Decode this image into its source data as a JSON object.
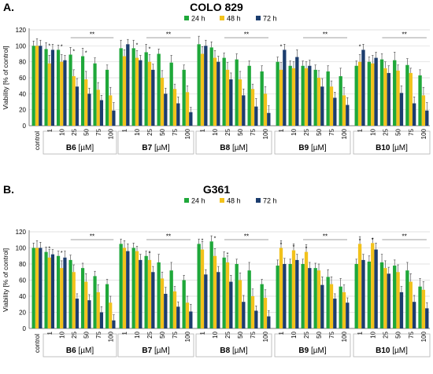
{
  "colors": {
    "h24": "#1fa83a",
    "h48": "#f2c21b",
    "h72": "#1c3d6e",
    "axis": "#7f7f7f",
    "grid": "#d9d9d9",
    "box": "#b3b3b3",
    "text": "#000000"
  },
  "chart_data": [
    {
      "type": "bar",
      "panel_label": "A.",
      "title": "COLO 829",
      "ylabel": "Viability [% of control]",
      "ylim": [
        0,
        120
      ],
      "yticks": [
        0,
        20,
        40,
        60,
        80,
        100,
        120
      ],
      "legend": [
        "24 h",
        "48 h",
        "72 h"
      ],
      "legend_position": "top",
      "grid": true,
      "control_label": "control",
      "concentration_labels": [
        "1",
        "10",
        "25",
        "50",
        "75",
        "100"
      ],
      "series": [
        {
          "name": "24 h",
          "control": 100,
          "groups": {
            "B6": [
              96,
              95,
              89,
              87,
              78,
              70
            ],
            "B7": [
              97,
              97,
              92,
              90,
              79,
              70
            ],
            "B8": [
              102,
              98,
              85,
              83,
              75,
              68
            ],
            "B9": [
              80,
              75,
              75,
              70,
              68,
              62
            ],
            "B10": [
              75,
              80,
              83,
              82,
              76,
              63
            ]
          }
        },
        {
          "name": "48 h",
          "control": 100,
          "groups": {
            "B6": [
              78,
              80,
              62,
              58,
              45,
              38
            ],
            "B7": [
              87,
              85,
              80,
              60,
              46,
              42
            ],
            "B8": [
              90,
              85,
              70,
              58,
              46,
              40
            ],
            "B9": [
              70,
              72,
              72,
              60,
              49,
              38
            ],
            "B10": [
              80,
              78,
              72,
              69,
              66,
              38
            ]
          }
        },
        {
          "name": "72 h",
          "control": 100,
          "groups": {
            "B6": [
              95,
              82,
              49,
              40,
              32,
              19
            ],
            "B7": [
              102,
              82,
              70,
              40,
              28,
              17
            ],
            "B8": [
              100,
              80,
              58,
              38,
              24,
              16
            ],
            "B9": [
              95,
              86,
              75,
              49,
              35,
              26
            ],
            "B10": [
              95,
              85,
              66,
              41,
              28,
              19
            ]
          }
        }
      ],
      "groups": [
        {
          "id": "B6",
          "label": "B6",
          "unit": " [µM]"
        },
        {
          "id": "B7",
          "label": "B7",
          "unit": " [µM]"
        },
        {
          "id": "B8",
          "label": "B8",
          "unit": " [µM]"
        },
        {
          "id": "B9",
          "label": "B9",
          "unit": " [µM]"
        },
        {
          "id": "B10",
          "label": "B10",
          "unit": " [µM]"
        }
      ],
      "significance": {
        "label": "**",
        "from_concentration": "25",
        "to_concentration": "100"
      },
      "star_marks": {
        "B6": [
          "1",
          "10",
          "25",
          "50"
        ],
        "B7": [
          "10",
          "25"
        ],
        "B8": [],
        "B9": [
          "1"
        ],
        "B10": [
          "1"
        ]
      }
    },
    {
      "type": "bar",
      "panel_label": "B.",
      "title": "G361",
      "ylabel": "Viability [% of control]",
      "ylim": [
        0,
        120
      ],
      "yticks": [
        0,
        20,
        40,
        60,
        80,
        100,
        120
      ],
      "legend": [
        "24 h",
        "48 h",
        "72 h"
      ],
      "legend_position": "top",
      "grid": true,
      "control_label": "control",
      "concentration_labels": [
        "1",
        "10",
        "25",
        "50",
        "75",
        "100"
      ],
      "series": [
        {
          "name": "24 h",
          "control": 100,
          "groups": {
            "B6": [
              95,
              90,
              85,
              75,
              65,
              55
            ],
            "B7": [
              105,
              100,
              90,
              82,
              72,
              60
            ],
            "B8": [
              105,
              108,
              88,
              80,
              72,
              55
            ],
            "B9": [
              78,
              80,
              80,
              75,
              64,
              52
            ],
            "B10": [
              80,
              83,
              82,
              78,
              72,
              52
            ]
          }
        },
        {
          "name": "48 h",
          "control": 100,
          "groups": {
            "B6": [
              88,
              75,
              70,
              58,
              45,
              32
            ],
            "B7": [
              100,
              96,
              85,
              62,
              46,
              32
            ],
            "B8": [
              98,
              90,
              82,
              60,
              40,
              38
            ],
            "B9": [
              100,
              97,
              95,
              72,
              55,
              45
            ],
            "B10": [
              105,
              106,
              75,
              70,
              58,
              48
            ]
          }
        },
        {
          "name": "72 h",
          "control": 100,
          "groups": {
            "B6": [
              92,
              88,
              37,
              35,
              20,
              10
            ],
            "B7": [
              96,
              85,
              70,
              43,
              27,
              21
            ],
            "B8": [
              67,
              70,
              58,
              33,
              22,
              15
            ],
            "B9": [
              80,
              85,
              75,
              54,
              37,
              32
            ],
            "B10": [
              85,
              98,
              68,
              45,
              33,
              25
            ]
          }
        }
      ],
      "groups": [
        {
          "id": "B6",
          "label": "B6",
          "unit": " [µM]"
        },
        {
          "id": "B7",
          "label": "B7",
          "unit": " [µM]"
        },
        {
          "id": "B8",
          "label": "B8",
          "unit": " [µM]"
        },
        {
          "id": "B9",
          "label": "B9",
          "unit": " [µM]"
        },
        {
          "id": "B10",
          "label": "B10",
          "unit": " [µM]"
        }
      ],
      "significance": {
        "label": "**",
        "from_concentration": "25",
        "to_concentration": "100"
      },
      "star_marks": {
        "B6": [
          "1",
          "10"
        ],
        "B7": [
          "25"
        ],
        "B8": [
          "1",
          "10",
          "25"
        ],
        "B9": [
          "1",
          "10",
          "25"
        ],
        "B10": [
          "1",
          "10"
        ]
      }
    }
  ]
}
